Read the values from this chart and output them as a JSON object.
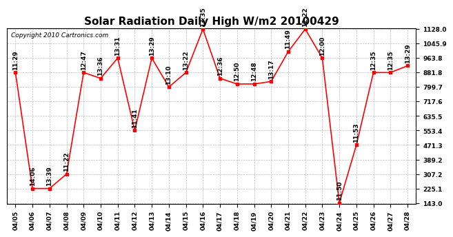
{
  "title": "Solar Radiation Daily High W/m2 20100429",
  "copyright": "Copyright 2010 Cartronics.com",
  "dates": [
    "04/05",
    "04/06",
    "04/07",
    "04/08",
    "04/09",
    "04/10",
    "04/11",
    "04/12",
    "04/13",
    "04/14",
    "04/15",
    "04/16",
    "04/17",
    "04/18",
    "04/19",
    "04/20",
    "04/21",
    "04/22",
    "04/23",
    "04/24",
    "04/25",
    "04/26",
    "04/27",
    "04/28"
  ],
  "values": [
    881.8,
    225.1,
    225.1,
    307.2,
    881.8,
    849.0,
    963.8,
    553.4,
    963.8,
    799.7,
    881.8,
    1128.0,
    849.0,
    817.0,
    817.0,
    831.0,
    1000.0,
    1128.0,
    963.8,
    143.0,
    471.3,
    881.8,
    881.8,
    920.0
  ],
  "time_labels": [
    "11:29",
    "14:06",
    "13:39",
    "11:22",
    "12:47",
    "13:36",
    "13:31",
    "11:41",
    "13:29",
    "13:10",
    "13:22",
    "13:35",
    "12:36",
    "12:50",
    "12:48",
    "13:17",
    "11:49",
    "12:22",
    "12:00",
    "11:50",
    "11:53",
    "12:35",
    "12:35",
    "13:29"
  ],
  "ymin": 143.0,
  "ymax": 1128.0,
  "yticks": [
    143.0,
    225.1,
    307.2,
    389.2,
    471.3,
    553.4,
    635.5,
    717.6,
    799.7,
    881.8,
    963.8,
    1045.9,
    1128.0
  ],
  "line_color": "red",
  "marker_color": "red",
  "bg_color": "white",
  "grid_color": "#bbbbbb",
  "title_fontsize": 11,
  "label_fontsize": 6.5,
  "annotation_fontsize": 6.5,
  "copyright_fontsize": 6.5
}
